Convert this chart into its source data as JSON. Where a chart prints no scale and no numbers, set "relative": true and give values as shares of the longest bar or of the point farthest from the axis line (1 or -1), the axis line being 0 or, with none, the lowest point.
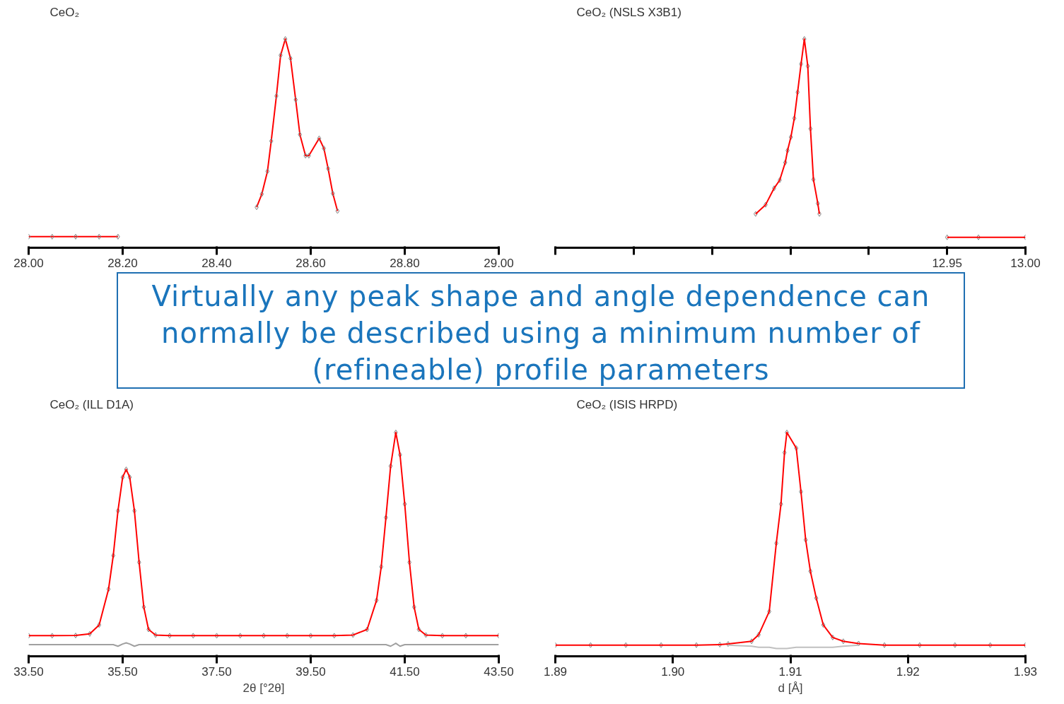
{
  "chart_data": [
    {
      "type": "line",
      "title": "CeO₂",
      "relative": true,
      "tick_labels": "x",
      "xlim": [
        28.0,
        29.0
      ],
      "xticks": [
        {
          "value": 28.0,
          "label": "28.00"
        },
        {
          "value": 28.2,
          "label": "28.20"
        },
        {
          "value": 28.4,
          "label": "28.40"
        },
        {
          "value": 28.6,
          "label": "28.60"
        },
        {
          "value": 28.8,
          "label": "28.80"
        },
        {
          "value": 29.0,
          "label": "29.00"
        }
      ],
      "x": [
        28.0,
        28.05,
        28.1,
        28.15,
        28.19,
        28.3,
        28.485,
        28.496,
        28.508,
        28.516,
        28.527,
        28.536,
        28.546,
        28.557,
        28.568,
        28.577,
        28.589,
        28.596,
        28.618,
        28.628,
        28.637,
        28.647,
        28.657
      ],
      "series": [
        {
          "type": "line",
          "marker": "diamond",
          "color": "#ff0000",
          "values": [
            0.053,
            0.053,
            0.053,
            0.053,
            0.053,
            null,
            0.194,
            0.257,
            0.366,
            0.511,
            0.727,
            0.922,
            1.0,
            0.907,
            0.709,
            0.542,
            0.441,
            0.441,
            0.524,
            0.476,
            0.379,
            0.26,
            0.176
          ]
        }
      ]
    },
    {
      "type": "line",
      "title": "CeO₂ (NSLS X3B1)",
      "relative": true,
      "tick_labels": "x",
      "xlim": [
        12.7,
        13.0
      ],
      "xticks": [
        {
          "value": 12.7,
          "label": null
        },
        {
          "value": 12.75,
          "label": null
        },
        {
          "value": 12.8,
          "label": null
        },
        {
          "value": 12.85,
          "label": null
        },
        {
          "value": 12.9,
          "label": null
        },
        {
          "value": 12.95,
          "label": "12.95"
        },
        {
          "value": 13.0,
          "label": "13.00"
        }
      ],
      "x": [
        12.8278,
        12.8342,
        12.8396,
        12.8432,
        12.8467,
        12.8482,
        12.8503,
        12.8525,
        12.8546,
        12.8568,
        12.8589,
        12.8611,
        12.8628,
        12.8647,
        12.8675,
        12.8685,
        12.9,
        12.95,
        12.97,
        13.0
      ],
      "series": [
        {
          "type": "scatter",
          "marker": "diamond",
          "color": "#808080",
          "values": [
            0.162,
            0.206,
            0.285,
            0.324,
            0.408,
            0.466,
            0.53,
            0.62,
            0.745,
            0.88,
            1.0,
            0.87,
            0.57,
            0.327,
            0.212,
            0.162,
            null,
            0.05,
            0.05,
            0.05
          ]
        },
        {
          "type": "line",
          "color": "#ff0000",
          "values": [
            0.162,
            0.206,
            0.285,
            0.324,
            0.408,
            0.466,
            0.53,
            0.62,
            0.745,
            0.88,
            1.0,
            0.87,
            0.57,
            0.327,
            0.212,
            0.162,
            null,
            0.05,
            0.05,
            0.05
          ]
        }
      ]
    },
    {
      "type": "other",
      "annotations": [
        "Virtually any peak shape and angle dependence can normally be described using a minimum number of (refineable) profile parameters"
      ]
    },
    {
      "type": "line",
      "title": "CeO₂ (ILL D1A)",
      "xlabel": "2θ [°2θ]",
      "relative": true,
      "tick_labels": "x",
      "xlim": [
        33.5,
        43.5
      ],
      "xticks": [
        {
          "value": 33.5,
          "label": "33.50"
        },
        {
          "value": 35.5,
          "label": "35.50"
        },
        {
          "value": 37.5,
          "label": "37.50"
        },
        {
          "value": 39.5,
          "label": "39.50"
        },
        {
          "value": 41.5,
          "label": "41.50"
        },
        {
          "value": 43.5,
          "label": "43.50"
        }
      ],
      "x": [
        33.5,
        34.0,
        34.5,
        34.8,
        35.0,
        35.2,
        35.3,
        35.4,
        35.5,
        35.575,
        35.65,
        35.75,
        35.85,
        35.95,
        36.05,
        36.2,
        36.5,
        37.0,
        37.5,
        38.0,
        38.5,
        39.0,
        39.5,
        40.0,
        40.4,
        40.7,
        40.9,
        41.0,
        41.1,
        41.2,
        41.31,
        41.4,
        41.5,
        41.6,
        41.7,
        41.8,
        41.95,
        42.3,
        42.8,
        43.5
      ],
      "series": [
        {
          "type": "scatter",
          "marker": "diamond",
          "color": "#808080",
          "values": [
            0.092,
            0.092,
            0.093,
            0.1,
            0.14,
            0.3,
            0.45,
            0.65,
            0.8,
            0.835,
            0.8,
            0.65,
            0.42,
            0.22,
            0.12,
            0.095,
            0.092,
            0.092,
            0.092,
            0.092,
            0.092,
            0.092,
            0.092,
            0.092,
            0.095,
            0.12,
            0.25,
            0.4,
            0.62,
            0.85,
            1.0,
            0.9,
            0.68,
            0.42,
            0.22,
            0.12,
            0.095,
            0.092,
            0.092,
            0.092
          ]
        },
        {
          "type": "line",
          "color": "#ff0000",
          "values": [
            0.092,
            0.092,
            0.093,
            0.1,
            0.14,
            0.3,
            0.45,
            0.65,
            0.8,
            0.835,
            0.8,
            0.65,
            0.42,
            0.22,
            0.12,
            0.095,
            0.092,
            0.092,
            0.092,
            0.092,
            0.092,
            0.092,
            0.092,
            0.092,
            0.095,
            0.12,
            0.25,
            0.4,
            0.62,
            0.85,
            1.0,
            0.9,
            0.68,
            0.42,
            0.22,
            0.12,
            0.095,
            0.092,
            0.092,
            0.092
          ]
        },
        {
          "type": "line",
          "color": "#a0a0a0",
          "values": [
            0.052,
            0.052,
            0.052,
            0.052,
            0.052,
            0.052,
            0.052,
            0.045,
            0.055,
            0.06,
            0.055,
            0.045,
            0.052,
            0.052,
            0.052,
            0.052,
            0.052,
            0.052,
            0.052,
            0.052,
            0.052,
            0.052,
            0.052,
            0.052,
            0.052,
            0.052,
            0.052,
            0.052,
            0.052,
            0.045,
            0.058,
            0.045,
            0.052,
            0.052,
            0.052,
            0.052,
            0.052,
            0.052,
            0.052,
            0.052
          ]
        }
      ]
    },
    {
      "type": "line",
      "title": "CeO₂ (ISIS HRPD)",
      "xlabel": "d [Å]",
      "relative": true,
      "tick_labels": "x",
      "xlim": [
        1.89,
        1.93
      ],
      "xticks": [
        {
          "value": 1.89,
          "label": "1.89"
        },
        {
          "value": 1.9,
          "label": "1.90"
        },
        {
          "value": 1.91,
          "label": "1.91"
        },
        {
          "value": 1.92,
          "label": "1.92"
        },
        {
          "value": 1.93,
          "label": "1.93"
        }
      ],
      "x": [
        1.89,
        1.893,
        1.896,
        1.899,
        1.902,
        1.904,
        1.9047,
        1.9067,
        1.9073,
        1.9082,
        1.9088,
        1.9092,
        1.9095,
        1.9097,
        1.9105,
        1.9109,
        1.9113,
        1.9117,
        1.9122,
        1.9128,
        1.9136,
        1.9145,
        1.9158,
        1.918,
        1.921,
        1.924,
        1.927,
        1.93
      ],
      "series": [
        {
          "type": "scatter",
          "marker": "diamond",
          "color": "#808080",
          "values": [
            0.05,
            0.05,
            0.05,
            0.05,
            0.05,
            0.052,
            0.055,
            0.067,
            0.096,
            0.2,
            0.505,
            0.68,
            0.91,
            1.0,
            0.93,
            0.735,
            0.52,
            0.38,
            0.26,
            0.14,
            0.084,
            0.067,
            0.057,
            0.05,
            0.05,
            0.05,
            0.05,
            0.05
          ]
        },
        {
          "type": "line",
          "color": "#ff0000",
          "values": [
            0.05,
            0.05,
            0.05,
            0.05,
            0.05,
            0.052,
            0.055,
            0.067,
            0.096,
            0.2,
            0.505,
            0.68,
            0.91,
            1.0,
            0.93,
            0.735,
            0.52,
            0.38,
            0.26,
            0.14,
            0.084,
            0.067,
            0.057,
            0.05,
            0.05,
            0.05,
            0.05,
            0.05
          ]
        },
        {
          "type": "line",
          "color": "#c0c0c0",
          "values": [
            null,
            null,
            null,
            null,
            null,
            null,
            0.05,
            0.045,
            0.04,
            0.04,
            0.035,
            0.035,
            0.035,
            0.035,
            0.04,
            0.04,
            0.04,
            0.04,
            0.04,
            0.04,
            0.04,
            0.045,
            0.05,
            null,
            null,
            null,
            null,
            null
          ]
        }
      ]
    }
  ]
}
